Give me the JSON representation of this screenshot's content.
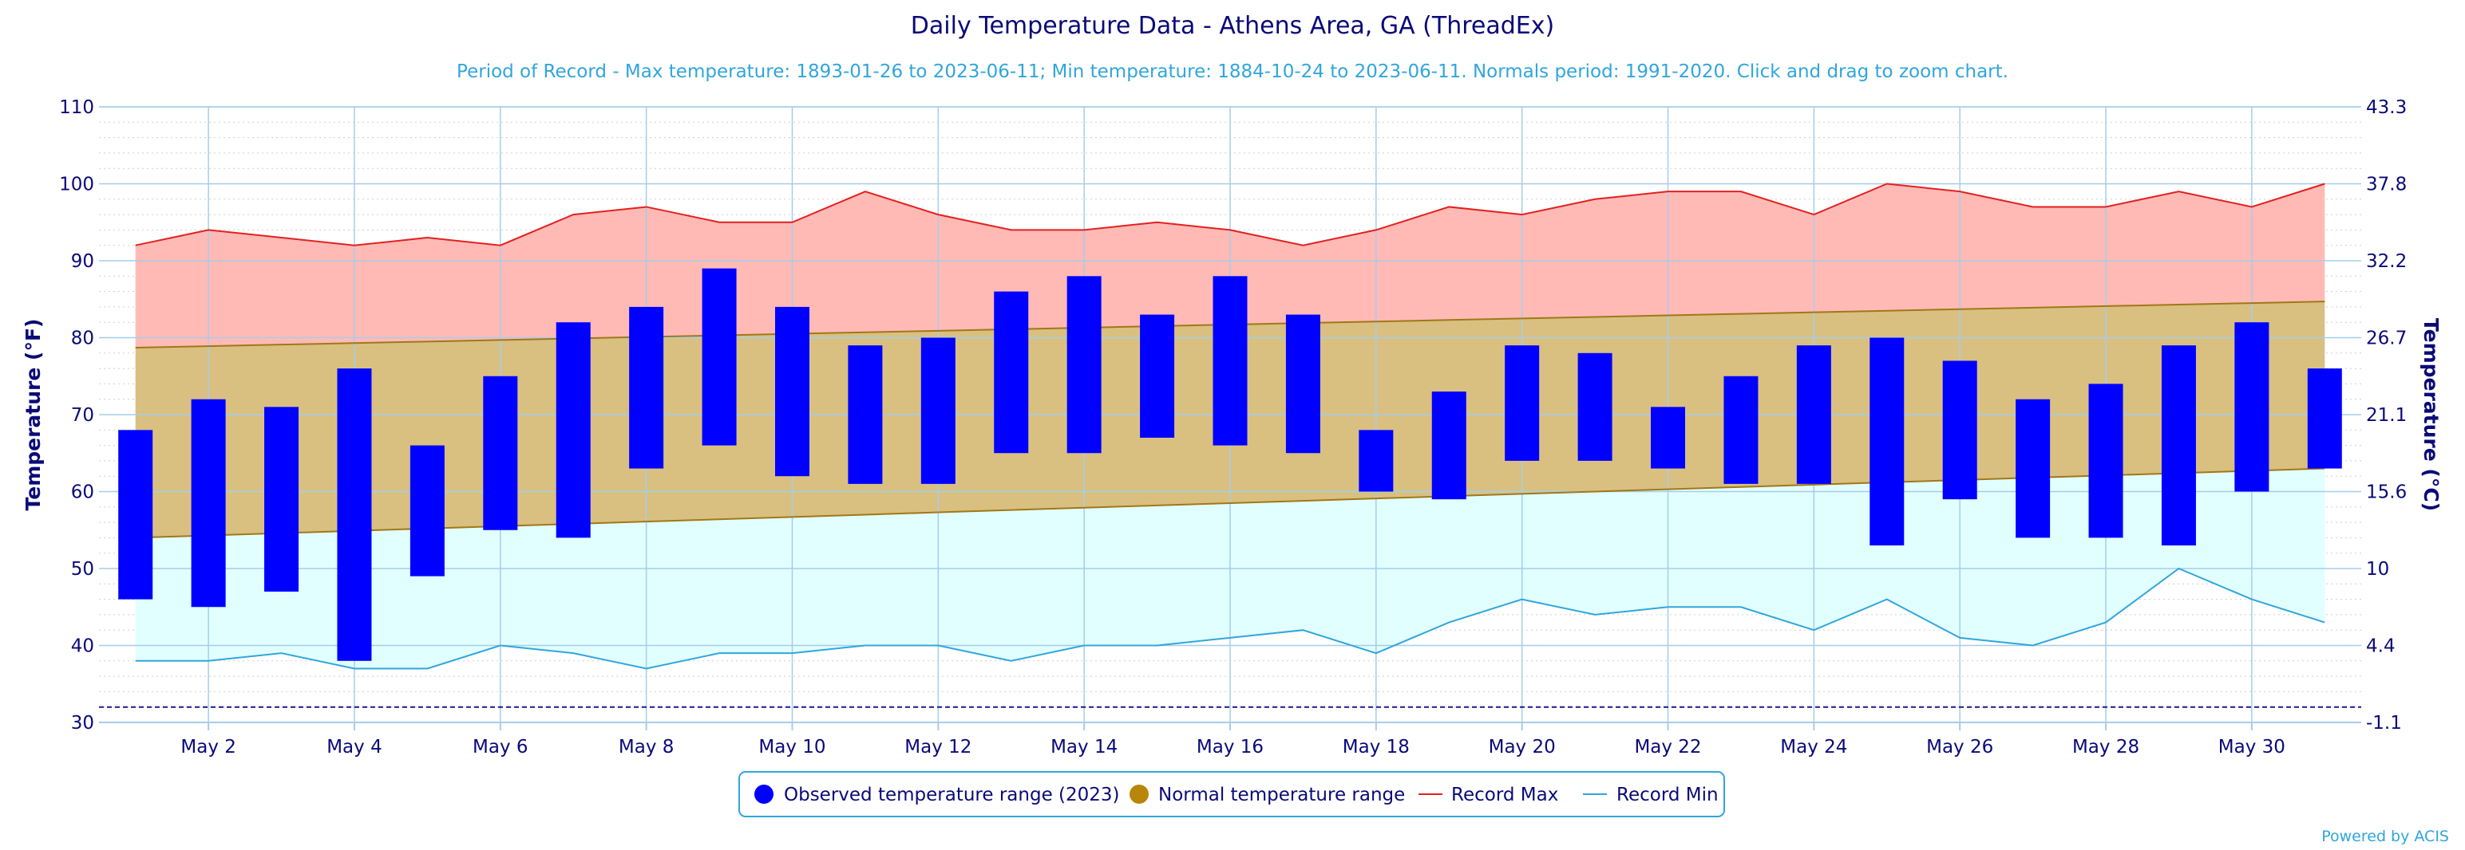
{
  "chart_data": {
    "type": "bar",
    "title": "Daily Temperature Data - Athens Area, GA (ThreadEx)",
    "subtitle": "Period of Record - Max temperature: 1893-01-26 to 2023-06-11; Min temperature: 1884-10-24 to 2023-06-11. Normals period: 1991-2020. Click and drag to zoom chart.",
    "ylabel_left": "Temperature (°F)",
    "ylabel_right": "Temperature (°C)",
    "ylim": [
      30,
      110
    ],
    "y_ticks_left": [
      "30",
      "40",
      "50",
      "60",
      "70",
      "80",
      "90",
      "100",
      "110"
    ],
    "y_ticks_right": [
      {
        "value": 30,
        "label": "-1.1"
      },
      {
        "value": 40,
        "label": "4.4"
      },
      {
        "value": 50,
        "label": "10"
      },
      {
        "value": 60,
        "label": "15.6"
      },
      {
        "value": 70,
        "label": "21.1"
      },
      {
        "value": 80,
        "label": "26.7"
      },
      {
        "value": 90,
        "label": "32.2"
      },
      {
        "value": 100,
        "label": "37.8"
      },
      {
        "value": 110,
        "label": "43.3"
      }
    ],
    "x_ticks": [
      {
        "day": 2,
        "label": "May 2"
      },
      {
        "day": 4,
        "label": "May 4"
      },
      {
        "day": 6,
        "label": "May 6"
      },
      {
        "day": 8,
        "label": "May 8"
      },
      {
        "day": 10,
        "label": "May 10"
      },
      {
        "day": 12,
        "label": "May 12"
      },
      {
        "day": 14,
        "label": "May 14"
      },
      {
        "day": 16,
        "label": "May 16"
      },
      {
        "day": 18,
        "label": "May 18"
      },
      {
        "day": 20,
        "label": "May 20"
      },
      {
        "day": 22,
        "label": "May 22"
      },
      {
        "day": 24,
        "label": "May 24"
      },
      {
        "day": 26,
        "label": "May 26"
      },
      {
        "day": 28,
        "label": "May 28"
      },
      {
        "day": 30,
        "label": "May 30"
      }
    ],
    "grid": true,
    "days": [
      1,
      2,
      3,
      4,
      5,
      6,
      7,
      8,
      9,
      10,
      11,
      12,
      13,
      14,
      15,
      16,
      17,
      18,
      19,
      20,
      21,
      22,
      23,
      24,
      25,
      26,
      27,
      28,
      29,
      30,
      31
    ],
    "series": [
      {
        "name": "Observed temperature range (2023)",
        "color": "#0000ff",
        "high": [
          68,
          72,
          71,
          76,
          66,
          75,
          82,
          84,
          89,
          84,
          79,
          80,
          86,
          88,
          83,
          88,
          83,
          68,
          73,
          79,
          78,
          71,
          75,
          79,
          80,
          77,
          72,
          74,
          79,
          82,
          76
        ],
        "low": [
          46,
          45,
          47,
          38,
          49,
          55,
          54,
          63,
          66,
          62,
          61,
          61,
          65,
          65,
          67,
          66,
          65,
          60,
          59,
          64,
          64,
          63,
          61,
          61,
          53,
          59,
          54,
          54,
          53,
          60,
          63
        ]
      },
      {
        "name": "Normal temperature range",
        "color": "#b8860b",
        "high": [
          78.7,
          78.9,
          79.1,
          79.3,
          79.5,
          79.7,
          79.9,
          80.1,
          80.3,
          80.5,
          80.7,
          80.9,
          81.1,
          81.3,
          81.5,
          81.7,
          81.9,
          82.1,
          82.3,
          82.5,
          82.7,
          82.9,
          83.1,
          83.3,
          83.5,
          83.7,
          83.9,
          84.1,
          84.3,
          84.5,
          84.7
        ],
        "low": [
          54.0,
          54.3,
          54.6,
          54.9,
          55.2,
          55.5,
          55.8,
          56.1,
          56.4,
          56.7,
          57.0,
          57.3,
          57.6,
          57.9,
          58.2,
          58.5,
          58.8,
          59.1,
          59.4,
          59.7,
          60.0,
          60.3,
          60.6,
          60.9,
          61.2,
          61.5,
          61.8,
          62.1,
          62.4,
          62.7,
          63.0
        ]
      },
      {
        "name": "Record Max",
        "color": "#e32020",
        "values": [
          92,
          94,
          93,
          92,
          93,
          92,
          96,
          97,
          95,
          95,
          99,
          96,
          94,
          94,
          95,
          94,
          92,
          94,
          97,
          96,
          98,
          99,
          99,
          96,
          100,
          99,
          97,
          97,
          99,
          97,
          100
        ]
      },
      {
        "name": "Record Min",
        "color": "#30a6dc",
        "values": [
          38,
          38,
          39,
          37,
          37,
          40,
          39,
          37,
          39,
          39,
          40,
          40,
          38,
          40,
          40,
          41,
          42,
          39,
          43,
          46,
          44,
          45,
          45,
          42,
          46,
          41,
          40,
          43,
          50,
          46,
          43
        ]
      }
    ],
    "fill_colors": {
      "record_max_area": "#ffbab5",
      "normal_area": "#d9c080",
      "record_min_area": "#e2ffff",
      "normal_line": "#a07818",
      "grid": "#a6cdea",
      "dashed_line": "#1a1a8c",
      "axis_text": "#0a0a78"
    },
    "legend": {
      "position": "bottom",
      "items": [
        {
          "label": "Observed temperature range (2023)",
          "marker": "circle",
          "color": "#0000ff"
        },
        {
          "label": "Normal temperature range",
          "marker": "circle",
          "color": "#b8860b"
        },
        {
          "label": "Record Max",
          "marker": "line",
          "color": "#e32020"
        },
        {
          "label": "Record Min",
          "marker": "line",
          "color": "#30a6dc"
        }
      ]
    },
    "credit": "Powered by ACIS"
  }
}
